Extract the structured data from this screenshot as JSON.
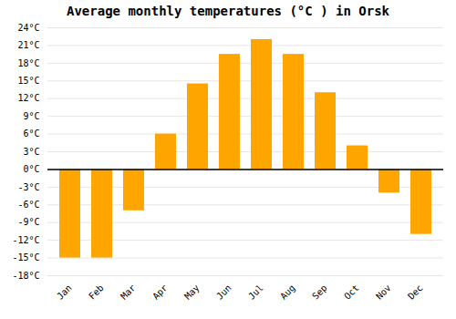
{
  "chart_data": {
    "type": "bar",
    "title": "Average monthly temperatures (°C ) in Orsk",
    "categories": [
      "Jan",
      "Feb",
      "Mar",
      "Apr",
      "May",
      "Jun",
      "Jul",
      "Aug",
      "Sep",
      "Oct",
      "Nov",
      "Dec"
    ],
    "values": [
      -15,
      -15,
      -7,
      6,
      14.5,
      19.5,
      22,
      19.5,
      13,
      4,
      -4,
      -11
    ],
    "color": "#FFA500",
    "ylim": [
      -18,
      24
    ],
    "yticks": [
      {
        "value": -18,
        "label": "-18°C"
      },
      {
        "value": -15,
        "label": "-15°C"
      },
      {
        "value": -12,
        "label": "-12°C"
      },
      {
        "value": -9,
        "label": "-9°C"
      },
      {
        "value": -6,
        "label": "-6°C"
      },
      {
        "value": -3,
        "label": "-3°C"
      },
      {
        "value": 0,
        "label": "0°C"
      },
      {
        "value": 3,
        "label": "3°C"
      },
      {
        "value": 6,
        "label": "6°C"
      },
      {
        "value": 9,
        "label": "9°C"
      },
      {
        "value": 12,
        "label": "12°C"
      },
      {
        "value": 15,
        "label": "15°C"
      },
      {
        "value": 18,
        "label": "18°C"
      },
      {
        "value": 21,
        "label": "21°C"
      },
      {
        "value": 24,
        "label": "24°C"
      }
    ],
    "grid": true
  }
}
